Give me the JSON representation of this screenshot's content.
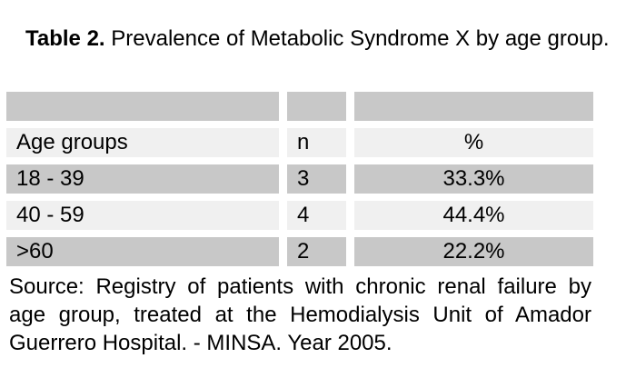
{
  "title": {
    "label": "Table 2.",
    "text": "Prevalence of Metabolic Syndrome X by age group."
  },
  "table": {
    "columns": [
      "Age groups",
      "n",
      "%"
    ],
    "rows": [
      [
        "18 - 39",
        "3",
        "33.3%"
      ],
      [
        "40 - 59",
        "4",
        "44.4%"
      ],
      [
        ">60",
        "2",
        "22.2%"
      ]
    ],
    "colors": {
      "dark_row": "#c8c8c8",
      "light_row": "#f0f0f0",
      "background": "#ffffff",
      "text": "#000000"
    }
  },
  "source": {
    "lines": [
      "Source: Registry of patients with chronic renal failure by",
      "age group, treated at the Hemodialysis Unit of Amador",
      "Guerrero Hospital. - MINSA. Year 2005."
    ]
  }
}
